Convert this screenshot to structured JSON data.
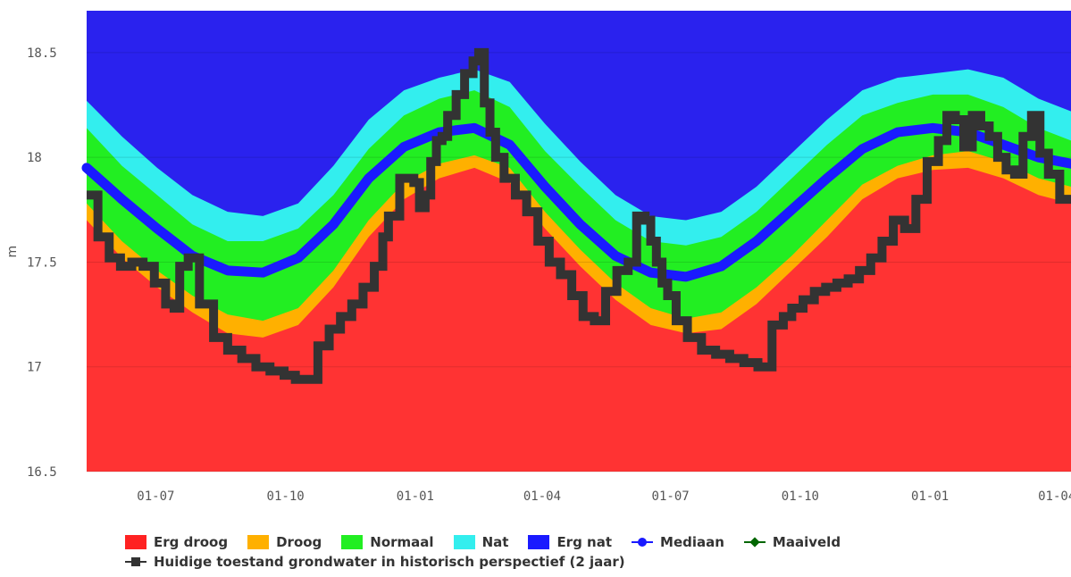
{
  "chart_data": {
    "type": "area",
    "ylabel": "m",
    "ylim": [
      16.5,
      18.7
    ],
    "yticks": [
      "16.5",
      "17",
      "17.5",
      "18",
      "18.5"
    ],
    "ytick_values": [
      16.5,
      17,
      17.5,
      18,
      18.5
    ],
    "x_range_days": [
      0,
      410
    ],
    "xticks": [
      {
        "label": "01-07",
        "day": 49
      },
      {
        "label": "01-10",
        "day": 141
      },
      {
        "label": "01-01",
        "day": 233
      },
      {
        "label": "01-04",
        "day": 323
      },
      {
        "label": "01-07",
        "day": 414
      },
      {
        "label": "01-10",
        "day": 506
      },
      {
        "label": "01-01",
        "day": 598
      },
      {
        "label": "01-04",
        "day": 688
      }
    ],
    "x": [
      0,
      25,
      50,
      75,
      100,
      125,
      150,
      175,
      200,
      225,
      250,
      275,
      300,
      325,
      350,
      375,
      400,
      425,
      450,
      475,
      500,
      525,
      550,
      575,
      600,
      625,
      650,
      675,
      698
    ],
    "series": [
      {
        "name": "Erg droog",
        "color": "#ff3333",
        "values": [
          17.7,
          17.52,
          17.38,
          17.26,
          17.16,
          17.14,
          17.2,
          17.38,
          17.62,
          17.8,
          17.9,
          17.95,
          17.88,
          17.66,
          17.48,
          17.32,
          17.2,
          17.16,
          17.18,
          17.3,
          17.46,
          17.62,
          17.8,
          17.9,
          17.94,
          17.95,
          17.9,
          17.82,
          17.78
        ]
      },
      {
        "name": "Droog",
        "color": "#ffb000",
        "values": [
          17.78,
          17.6,
          17.46,
          17.34,
          17.25,
          17.22,
          17.28,
          17.46,
          17.7,
          17.88,
          17.97,
          18.01,
          17.95,
          17.74,
          17.56,
          17.4,
          17.28,
          17.23,
          17.26,
          17.38,
          17.53,
          17.7,
          17.87,
          17.96,
          18.01,
          18.03,
          17.98,
          17.9,
          17.86
        ]
      },
      {
        "name": "Normaal",
        "color": "#22ee22",
        "values": [
          18.14,
          17.96,
          17.82,
          17.68,
          17.6,
          17.6,
          17.66,
          17.82,
          18.04,
          18.2,
          18.28,
          18.32,
          18.24,
          18.03,
          17.86,
          17.7,
          17.6,
          17.58,
          17.62,
          17.74,
          17.9,
          18.06,
          18.2,
          18.26,
          18.3,
          18.3,
          18.24,
          18.14,
          18.08
        ]
      },
      {
        "name": "Nat",
        "color": "#33eeee",
        "values": [
          18.27,
          18.1,
          17.95,
          17.82,
          17.74,
          17.72,
          17.78,
          17.96,
          18.18,
          18.32,
          18.38,
          18.42,
          18.36,
          18.16,
          17.98,
          17.82,
          17.72,
          17.7,
          17.74,
          17.86,
          18.02,
          18.18,
          18.32,
          18.38,
          18.4,
          18.42,
          18.38,
          18.28,
          18.22
        ]
      },
      {
        "name": "Erg nat",
        "color": "#2a22ee",
        "values": [
          18.7,
          18.7,
          18.7,
          18.7,
          18.7,
          18.7,
          18.7,
          18.7,
          18.7,
          18.7,
          18.7,
          18.7,
          18.7,
          18.7,
          18.7,
          18.7,
          18.7,
          18.7,
          18.7,
          18.7,
          18.7,
          18.7,
          18.7,
          18.7,
          18.7,
          18.7,
          18.7,
          18.7,
          18.7
        ]
      },
      {
        "name": "Mediaan",
        "color": "#1a1aff",
        "line": true,
        "values": [
          17.95,
          17.8,
          17.66,
          17.53,
          17.46,
          17.45,
          17.52,
          17.68,
          17.9,
          18.05,
          18.12,
          18.14,
          18.06,
          17.86,
          17.68,
          17.53,
          17.45,
          17.43,
          17.48,
          17.6,
          17.75,
          17.9,
          18.04,
          18.12,
          18.14,
          18.12,
          18.06,
          18.0,
          17.97
        ]
      }
    ],
    "current": {
      "name": "Huidige toestand grondwater in historisch perspectief (2 jaar)",
      "color": "#333333",
      "x": [
        0,
        8,
        16,
        24,
        32,
        40,
        48,
        56,
        62,
        66,
        72,
        80,
        90,
        100,
        110,
        120,
        130,
        140,
        148,
        156,
        164,
        172,
        180,
        188,
        196,
        204,
        210,
        214,
        222,
        232,
        236,
        240,
        244,
        248,
        252,
        256,
        262,
        268,
        274,
        278,
        282,
        286,
        290,
        296,
        304,
        312,
        320,
        328,
        336,
        344,
        352,
        360,
        368,
        376,
        384,
        390,
        396,
        400,
        404,
        408,
        412,
        418,
        426,
        436,
        446,
        456,
        466,
        476,
        486,
        494,
        500,
        508,
        516,
        524,
        532,
        540,
        548,
        556,
        564,
        572,
        580,
        588,
        596,
        604,
        610,
        616,
        622,
        628,
        634,
        640,
        646,
        652,
        658,
        664,
        670,
        676,
        682,
        690,
        698
      ],
      "values": [
        17.82,
        17.62,
        17.52,
        17.48,
        17.5,
        17.48,
        17.4,
        17.3,
        17.28,
        17.48,
        17.52,
        17.3,
        17.14,
        17.08,
        17.04,
        17.0,
        16.98,
        16.96,
        16.94,
        16.94,
        17.1,
        17.18,
        17.24,
        17.3,
        17.38,
        17.48,
        17.62,
        17.72,
        17.9,
        17.88,
        17.76,
        17.82,
        17.98,
        18.08,
        18.1,
        18.2,
        18.3,
        18.4,
        18.46,
        18.5,
        18.26,
        18.12,
        18.0,
        17.9,
        17.82,
        17.74,
        17.6,
        17.5,
        17.44,
        17.34,
        17.24,
        17.22,
        17.36,
        17.46,
        17.5,
        17.72,
        17.7,
        17.6,
        17.5,
        17.4,
        17.34,
        17.22,
        17.14,
        17.08,
        17.06,
        17.04,
        17.02,
        17.0,
        17.2,
        17.24,
        17.28,
        17.32,
        17.36,
        17.38,
        17.4,
        17.42,
        17.46,
        17.52,
        17.6,
        17.7,
        17.66,
        17.8,
        17.98,
        18.08,
        18.2,
        18.18,
        18.05,
        18.2,
        18.15,
        18.1,
        18.0,
        17.94,
        17.92,
        18.1,
        18.2,
        18.02,
        17.92,
        17.8,
        17.78
      ]
    },
    "legend": [
      {
        "label": "Erg droog",
        "kind": "area",
        "color": "#ff2222"
      },
      {
        "label": "Droog",
        "kind": "area",
        "color": "#ffb000"
      },
      {
        "label": "Normaal",
        "kind": "area",
        "color": "#22ee22"
      },
      {
        "label": "Nat",
        "kind": "area",
        "color": "#33eeee"
      },
      {
        "label": "Erg nat",
        "kind": "area",
        "color": "#1a1aff"
      },
      {
        "label": "Mediaan",
        "kind": "line-dot",
        "color": "#1a1aff"
      },
      {
        "label": "Maaiveld",
        "kind": "line-diamond",
        "color": "#006600"
      }
    ],
    "legend_current": {
      "label": "Huidige toestand grondwater in historisch perspectief (2 jaar)",
      "kind": "line-square",
      "color": "#333333"
    }
  }
}
